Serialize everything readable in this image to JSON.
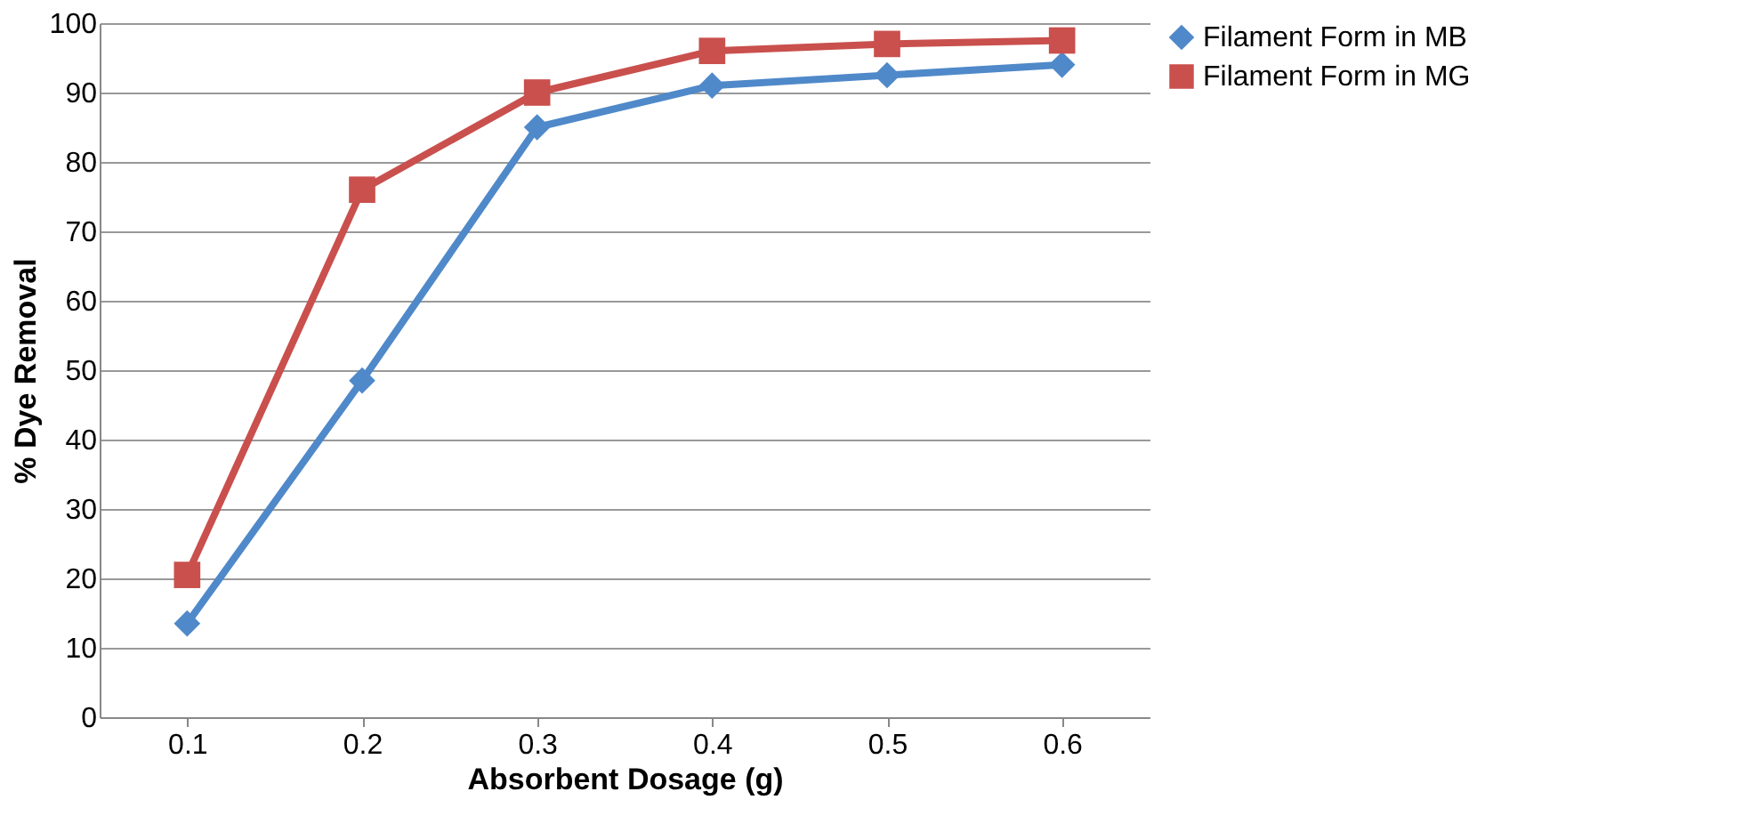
{
  "chart_data": {
    "type": "line",
    "xlabel": "Absorbent Dosage (g)",
    "ylabel": "% Dye Removal",
    "categories": [
      "0.1",
      "0.2",
      "0.3",
      "0.4",
      "0.5",
      "0.6"
    ],
    "series": [
      {
        "name": "Filament Form in MB",
        "color": "#4f89c9",
        "marker": "diamond",
        "values": [
          13.5,
          48.5,
          85,
          91,
          92.5,
          94
        ]
      },
      {
        "name": "Filament Form in MG",
        "color": "#c9504d",
        "marker": "square",
        "values": [
          20.5,
          76,
          90,
          96,
          97,
          97.5
        ]
      }
    ],
    "ylim": [
      0,
      100
    ],
    "yticks": [
      0,
      10,
      20,
      30,
      40,
      50,
      60,
      70,
      80,
      90,
      100
    ],
    "grid": "y",
    "legend": "right",
    "line_style": "solid"
  }
}
